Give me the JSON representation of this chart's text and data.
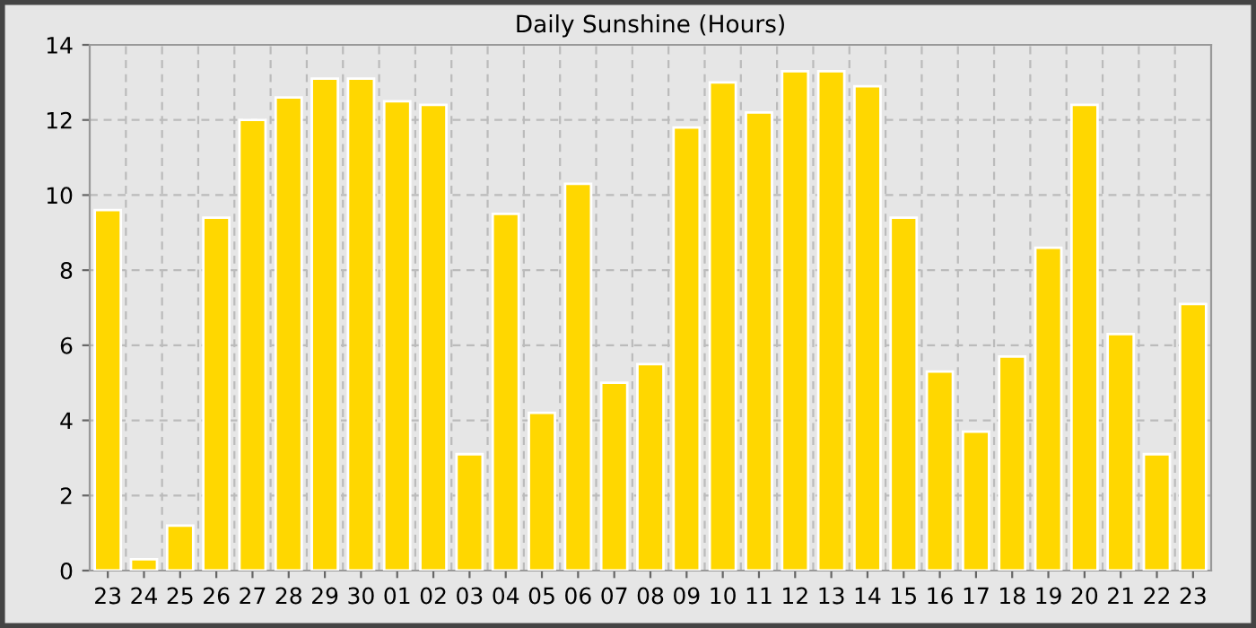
{
  "chart_data": {
    "type": "bar",
    "title": "Daily Sunshine (Hours)",
    "categories": [
      "23",
      "24",
      "25",
      "26",
      "27",
      "28",
      "29",
      "30",
      "01",
      "02",
      "03",
      "04",
      "05",
      "06",
      "07",
      "08",
      "09",
      "10",
      "11",
      "12",
      "13",
      "14",
      "15",
      "16",
      "17",
      "18",
      "19",
      "20",
      "21",
      "22",
      "23"
    ],
    "values": [
      9.6,
      0.3,
      1.2,
      9.4,
      12.0,
      12.6,
      13.1,
      13.1,
      12.5,
      12.4,
      3.1,
      9.5,
      4.2,
      10.3,
      5.0,
      5.5,
      11.8,
      13.0,
      12.2,
      13.3,
      13.3,
      12.9,
      9.4,
      5.3,
      3.7,
      5.7,
      8.6,
      12.4,
      6.3,
      3.1,
      7.1
    ],
    "color": "#ffd700",
    "ylim": [
      0,
      14
    ],
    "yticks": [
      0,
      2,
      4,
      6,
      8,
      10,
      12,
      14
    ],
    "grid": true
  }
}
